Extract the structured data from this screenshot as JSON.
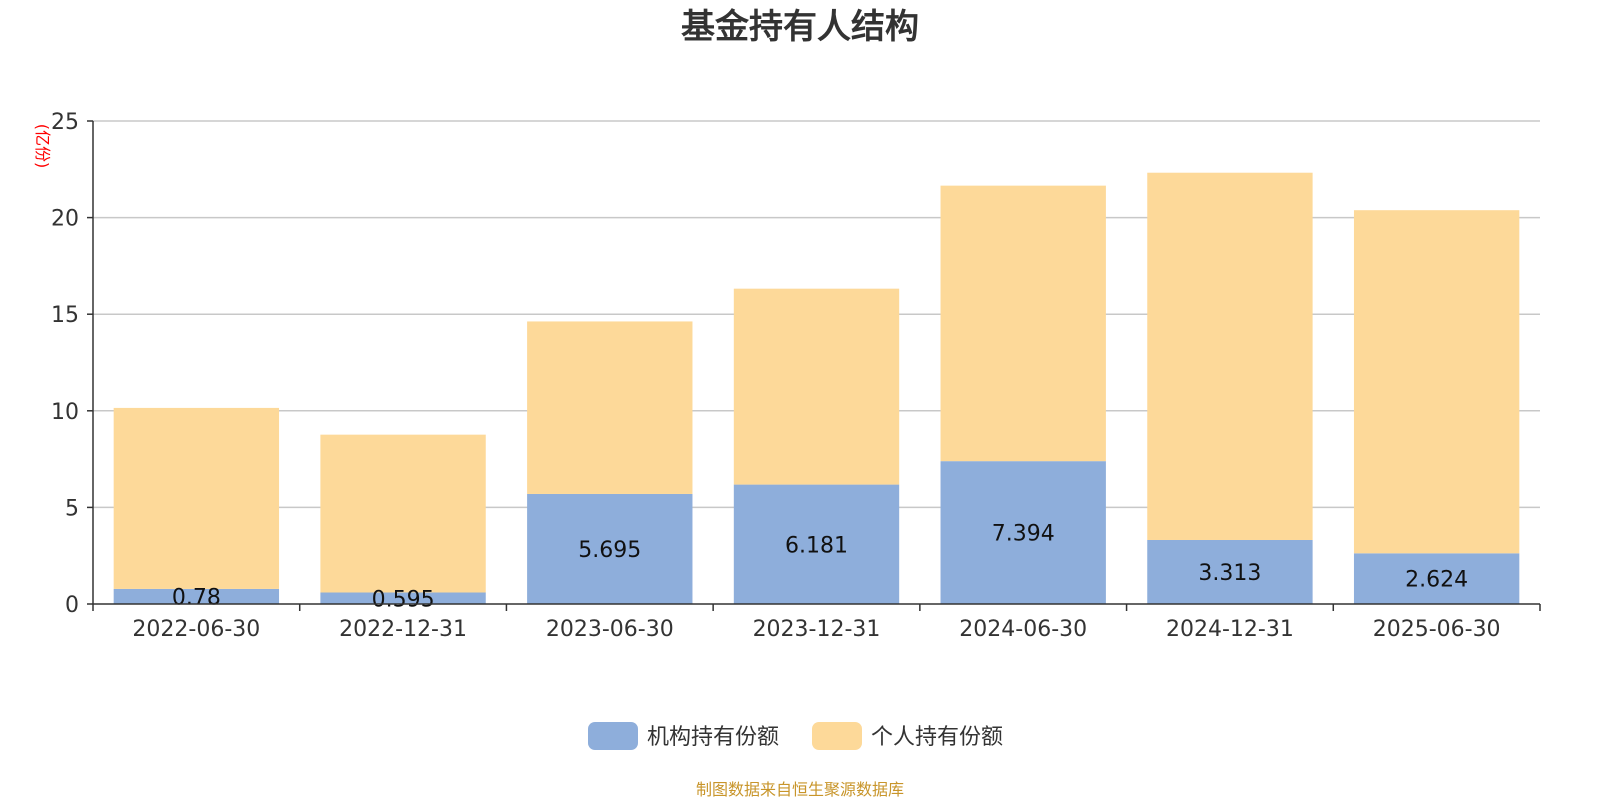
{
  "chart_data": {
    "type": "bar",
    "stacked": true,
    "title": "基金持有人结构",
    "ylabel": "(亿份)",
    "ylim": [
      0,
      25
    ],
    "yticks": [
      0,
      5,
      10,
      15,
      20,
      25
    ],
    "grid": true,
    "legend_position": "bottom-center",
    "categories": [
      "2022-06-30",
      "2022-12-31",
      "2023-06-30",
      "2023-12-31",
      "2024-06-30",
      "2024-12-31",
      "2025-06-30"
    ],
    "series": [
      {
        "name": "机构持有份额",
        "color": "#8eaedb",
        "values": [
          0.78,
          0.595,
          5.695,
          6.181,
          7.394,
          3.313,
          2.624
        ],
        "labels": [
          "0.78",
          "0.595",
          "5.695",
          "6.181",
          "7.394",
          "3.313",
          "2.624"
        ]
      },
      {
        "name": "个人持有份额",
        "color": "#fdd999",
        "values": [
          9.37,
          8.17,
          8.93,
          10.14,
          14.26,
          19.01,
          17.76
        ]
      }
    ],
    "source": "制图数据来自恒生聚源数据库"
  }
}
